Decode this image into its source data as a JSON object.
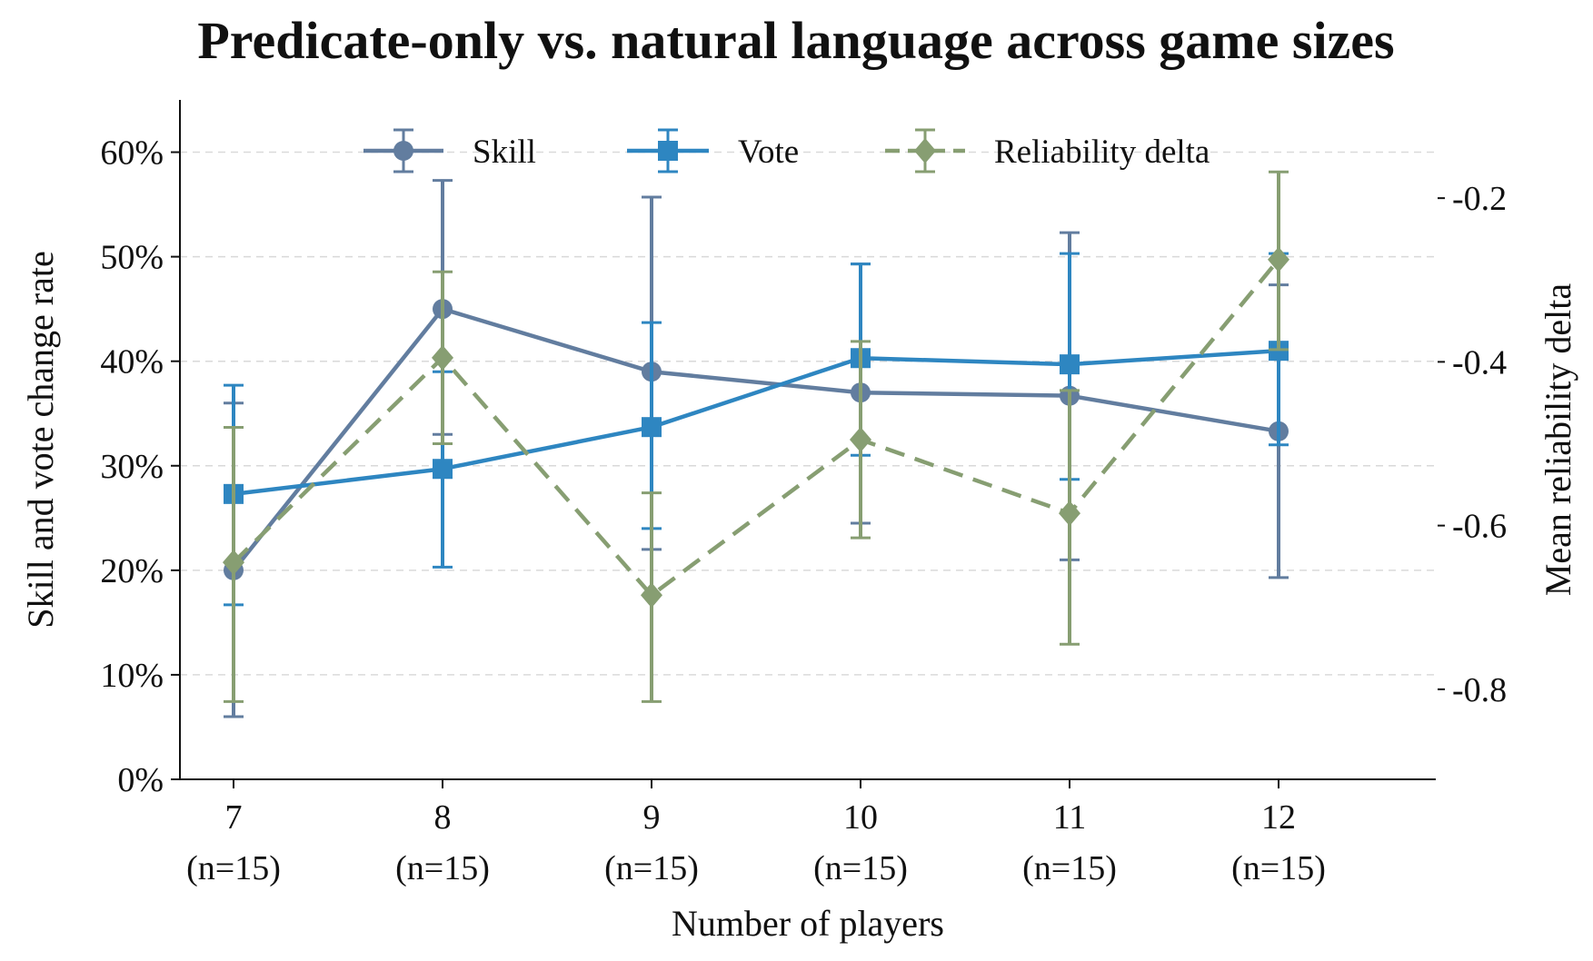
{
  "chart_data": {
    "type": "line",
    "title": "Predicate-only vs. natural language across game sizes",
    "xlabel": "Number of players",
    "ylabel_left": "Skill and vote change rate",
    "ylabel_right": "Mean reliability delta",
    "categories": [
      "7",
      "8",
      "9",
      "10",
      "11",
      "12"
    ],
    "category_sublabels": [
      "(n=15)",
      "(n=15)",
      "(n=15)",
      "(n=15)",
      "(n=15)",
      "(n=15)"
    ],
    "ylim_left": [
      0,
      0.65
    ],
    "yticks_left": [
      0,
      0.1,
      0.2,
      0.3,
      0.4,
      0.5,
      0.6
    ],
    "ytick_labels_left": [
      "0%",
      "10%",
      "20%",
      "30%",
      "40%",
      "50%",
      "60%"
    ],
    "ylim_right": [
      -0.91,
      -0.08
    ],
    "yticks_right": [
      -0.8,
      -0.6,
      -0.4,
      -0.2
    ],
    "ytick_labels_right": [
      "-0.8",
      "-0.6",
      "-0.4",
      "-0.2"
    ],
    "grid": "horizontal dashed",
    "legend_position": "top-center",
    "series": [
      {
        "name": "Skill",
        "axis": "left",
        "color": "#627d9f",
        "marker": "circle",
        "linestyle": "solid",
        "values": [
          0.2,
          0.45,
          0.39,
          0.37,
          0.367,
          0.333
        ],
        "err_low": [
          0.06,
          0.33,
          0.22,
          0.245,
          0.21,
          0.193
        ],
        "err_high": [
          0.36,
          0.573,
          0.557,
          0.493,
          0.523,
          0.473
        ]
      },
      {
        "name": "Vote",
        "axis": "left",
        "color": "#2e86c1",
        "marker": "square",
        "linestyle": "solid",
        "values": [
          0.273,
          0.297,
          0.337,
          0.403,
          0.397,
          0.41
        ],
        "err_low": [
          0.167,
          0.203,
          0.24,
          0.31,
          0.287,
          0.32
        ],
        "err_high": [
          0.377,
          0.39,
          0.437,
          0.493,
          0.503,
          0.503
        ]
      },
      {
        "name": "Reliability delta",
        "axis": "right",
        "color": "#879e72",
        "marker": "diamond",
        "linestyle": "dashed",
        "values": [
          -0.645,
          -0.395,
          -0.685,
          -0.495,
          -0.585,
          -0.275
        ],
        "err_low": [
          -0.815,
          -0.5,
          -0.815,
          -0.615,
          -0.745,
          -0.385
        ],
        "err_high": [
          -0.48,
          -0.29,
          -0.56,
          -0.375,
          -0.435,
          -0.168
        ]
      }
    ]
  }
}
